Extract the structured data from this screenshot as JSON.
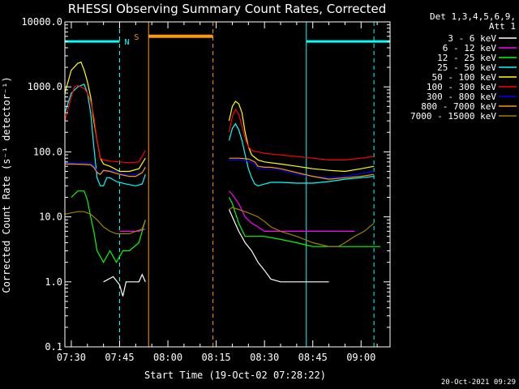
{
  "chart_data": {
    "type": "line",
    "title": "RHESSI Observing Summary Count Rates, Corrected",
    "xlabel": "Start Time (19-Oct-02 07:28:22)",
    "ylabel": "Corrected Count Rate (s⁻¹ detector⁻¹)",
    "y_scale": "log",
    "ylim": [
      0.1,
      10000
    ],
    "xlim_minutes": [
      -2,
      99
    ],
    "x_tick_labels": [
      "07:30",
      "07:45",
      "08:00",
      "08:15",
      "08:30",
      "08:45",
      "09:00"
    ],
    "x_tick_values": [
      0,
      15,
      30,
      45,
      60,
      75,
      90
    ],
    "y_tick_labels": [
      "0.1",
      "1.0",
      "10.0",
      "100.0",
      "1000.0",
      "10000.0"
    ],
    "y_tick_values": [
      0.1,
      1,
      10,
      100,
      1000,
      10000
    ],
    "legend_header": [
      "Det 1,3,4,5,6,9,",
      "Att 1"
    ],
    "legend_placement": "right",
    "footer_date": "20-Oct-2021 09:29",
    "markers": [
      {
        "label": "N",
        "color": "#00ffff"
      },
      {
        "label": "S",
        "color": "#ff9900"
      }
    ],
    "intervals": [
      {
        "name": "night",
        "color": "#00ffff",
        "level": 5000,
        "segments": [
          [
            -2,
            15
          ],
          [
            73,
            99
          ]
        ],
        "vlines_solid": [
          -2,
          73
        ],
        "vlines_dashed": [
          15,
          94
        ]
      },
      {
        "name": "saa",
        "color": "#ff9900",
        "level": 6000,
        "segments": [
          [
            24,
            44
          ]
        ],
        "vlines_solid": [
          24
        ],
        "vlines_dashed": [
          44
        ]
      }
    ],
    "series": [
      {
        "name": "3 - 6 keV",
        "color": "#ffffff",
        "segments": [
          [
            [
              10,
              1
            ],
            [
              13,
              1.2
            ],
            [
              15,
              0.9
            ],
            [
              16,
              0.6
            ],
            [
              17,
              1
            ],
            [
              19,
              1
            ],
            [
              21,
              1
            ],
            [
              22,
              1.3
            ],
            [
              23,
              1
            ]
          ],
          [
            [
              49,
              13
            ],
            [
              50,
              10
            ],
            [
              52,
              6
            ],
            [
              54,
              4
            ],
            [
              56,
              3
            ],
            [
              58,
              2
            ],
            [
              60,
              1.5
            ],
            [
              62,
              1.1
            ],
            [
              65,
              1
            ],
            [
              70,
              1
            ],
            [
              75,
              1
            ],
            [
              80,
              1
            ]
          ]
        ]
      },
      {
        "name": "6 - 12 keV",
        "color": "#ff00ff",
        "segments": [
          [
            [
              15,
              6
            ],
            [
              17,
              6
            ],
            [
              19,
              6
            ],
            [
              21,
              6
            ],
            [
              23,
              6.5
            ]
          ],
          [
            [
              49,
              25
            ],
            [
              50,
              22
            ],
            [
              52,
              16
            ],
            [
              54,
              10
            ],
            [
              56,
              8
            ],
            [
              58,
              7
            ],
            [
              60,
              6
            ],
            [
              62,
              6
            ],
            [
              65,
              6
            ],
            [
              70,
              6
            ],
            [
              75,
              6
            ],
            [
              80,
              6
            ],
            [
              85,
              6
            ],
            [
              88,
              6
            ]
          ]
        ]
      },
      {
        "name": "12 - 25 keV",
        "color": "#00ff00",
        "segments": [
          [
            [
              0,
              20
            ],
            [
              2,
              25
            ],
            [
              4,
              25
            ],
            [
              5,
              18
            ],
            [
              6,
              10
            ],
            [
              7,
              6
            ],
            [
              8,
              3
            ],
            [
              10,
              2
            ],
            [
              12,
              3
            ],
            [
              14,
              2
            ],
            [
              16,
              3
            ],
            [
              18,
              3
            ],
            [
              21,
              4
            ],
            [
              23,
              9
            ]
          ],
          [
            [
              49,
              20
            ],
            [
              50,
              16
            ],
            [
              52,
              8
            ],
            [
              54,
              5
            ],
            [
              56,
              5
            ],
            [
              58,
              5
            ],
            [
              60,
              5
            ],
            [
              65,
              4.5
            ],
            [
              70,
              4
            ],
            [
              75,
              3.5
            ],
            [
              80,
              3.5
            ],
            [
              85,
              3.5
            ],
            [
              88,
              3.5
            ],
            [
              93,
              3.5
            ],
            [
              96,
              3.5
            ]
          ]
        ]
      },
      {
        "name": "25 - 50 keV",
        "color": "#00ffff",
        "segments": [
          [
            [
              -2,
              400
            ],
            [
              0,
              800
            ],
            [
              2,
              1000
            ],
            [
              4,
              1100
            ],
            [
              5,
              800
            ],
            [
              6,
              400
            ],
            [
              7,
              120
            ],
            [
              8,
              40
            ],
            [
              9,
              30
            ],
            [
              10,
              30
            ],
            [
              11,
              40
            ],
            [
              12,
              40
            ],
            [
              14,
              35
            ],
            [
              17,
              32
            ],
            [
              20,
              30
            ],
            [
              22,
              32
            ],
            [
              23,
              45
            ]
          ],
          [
            [
              49,
              150
            ],
            [
              50,
              230
            ],
            [
              51,
              270
            ],
            [
              52,
              220
            ],
            [
              53,
              150
            ],
            [
              54,
              90
            ],
            [
              55,
              55
            ],
            [
              56,
              40
            ],
            [
              57,
              32
            ],
            [
              58,
              30
            ],
            [
              60,
              32
            ],
            [
              62,
              34
            ],
            [
              65,
              34
            ],
            [
              70,
              33
            ],
            [
              75,
              33
            ],
            [
              80,
              35
            ],
            [
              85,
              38
            ],
            [
              90,
              40
            ],
            [
              94,
              42
            ]
          ]
        ]
      },
      {
        "name": "50 - 100 keV",
        "color": "#ffff00",
        "segments": [
          [
            [
              -2,
              800
            ],
            [
              0,
              1800
            ],
            [
              2,
              2300
            ],
            [
              3,
              2400
            ],
            [
              4,
              1800
            ],
            [
              5,
              1200
            ],
            [
              6,
              700
            ],
            [
              7,
              300
            ],
            [
              8,
              150
            ],
            [
              9,
              80
            ],
            [
              10,
              65
            ],
            [
              12,
              60
            ],
            [
              15,
              50
            ],
            [
              18,
              50
            ],
            [
              21,
              55
            ],
            [
              23,
              80
            ]
          ],
          [
            [
              49,
              300
            ],
            [
              50,
              500
            ],
            [
              51,
              600
            ],
            [
              52,
              550
            ],
            [
              53,
              400
            ],
            [
              54,
              200
            ],
            [
              55,
              120
            ],
            [
              56,
              90
            ],
            [
              58,
              75
            ],
            [
              60,
              70
            ],
            [
              65,
              65
            ],
            [
              70,
              60
            ],
            [
              75,
              55
            ],
            [
              80,
              52
            ],
            [
              85,
              50
            ],
            [
              90,
              55
            ],
            [
              94,
              60
            ]
          ]
        ]
      },
      {
        "name": "100 - 300 keV",
        "color": "#ff0000",
        "segments": [
          [
            [
              -2,
              300
            ],
            [
              0,
              700
            ],
            [
              1,
              1000
            ],
            [
              2,
              1050
            ],
            [
              4,
              950
            ],
            [
              5,
              800
            ],
            [
              6,
              600
            ],
            [
              7,
              350
            ],
            [
              8,
              150
            ],
            [
              9,
              80
            ],
            [
              10,
              75
            ],
            [
              12,
              72
            ],
            [
              15,
              70
            ],
            [
              18,
              68
            ],
            [
              21,
              70
            ],
            [
              23,
              105
            ]
          ],
          [
            [
              49,
              200
            ],
            [
              50,
              350
            ],
            [
              51,
              450
            ],
            [
              52,
              380
            ],
            [
              53,
              250
            ],
            [
              54,
              160
            ],
            [
              55,
              120
            ],
            [
              56,
              105
            ],
            [
              58,
              100
            ],
            [
              60,
              95
            ],
            [
              65,
              90
            ],
            [
              70,
              85
            ],
            [
              75,
              80
            ],
            [
              80,
              75
            ],
            [
              85,
              75
            ],
            [
              90,
              80
            ],
            [
              94,
              85
            ]
          ]
        ]
      },
      {
        "name": "300 - 800 keV",
        "color": "#0000ff",
        "segments": [
          [
            [
              -2,
              68
            ],
            [
              0,
              68
            ],
            [
              4,
              67
            ],
            [
              6,
              66
            ],
            [
              7,
              62
            ],
            [
              8,
              50
            ],
            [
              9,
              45
            ],
            [
              10,
              50
            ],
            [
              12,
              52
            ],
            [
              14,
              50
            ],
            [
              16,
              45
            ],
            [
              18,
              45
            ],
            [
              20,
              45
            ],
            [
              22,
              48
            ],
            [
              23,
              60
            ]
          ],
          [
            [
              49,
              75
            ],
            [
              52,
              75
            ],
            [
              55,
              72
            ],
            [
              57,
              65
            ],
            [
              58,
              55
            ],
            [
              60,
              55
            ],
            [
              62,
              55
            ],
            [
              65,
              52
            ],
            [
              70,
              45
            ],
            [
              75,
              42
            ],
            [
              80,
              40
            ],
            [
              85,
              42
            ],
            [
              90,
              46
            ],
            [
              94,
              50
            ]
          ]
        ]
      },
      {
        "name": "800 - 7000 keV",
        "color": "#ff9900",
        "segments": [
          [
            [
              -2,
              65
            ],
            [
              0,
              65
            ],
            [
              4,
              64
            ],
            [
              6,
              63
            ],
            [
              7,
              58
            ],
            [
              8,
              48
            ],
            [
              9,
              45
            ],
            [
              10,
              52
            ],
            [
              12,
              50
            ],
            [
              15,
              45
            ],
            [
              18,
              42
            ],
            [
              20,
              42
            ],
            [
              22,
              48
            ],
            [
              23,
              58
            ]
          ],
          [
            [
              49,
              80
            ],
            [
              52,
              80
            ],
            [
              55,
              78
            ],
            [
              57,
              70
            ],
            [
              58,
              60
            ],
            [
              60,
              58
            ],
            [
              62,
              58
            ],
            [
              65,
              55
            ],
            [
              70,
              48
            ],
            [
              75,
              42
            ],
            [
              80,
              38
            ],
            [
              85,
              40
            ],
            [
              90,
              42
            ],
            [
              94,
              45
            ]
          ]
        ]
      },
      {
        "name": "7000 - 15000 keV",
        "color": "#a08000",
        "segments": [
          [
            [
              -2,
              11
            ],
            [
              0,
              11.5
            ],
            [
              2,
              12
            ],
            [
              4,
              12
            ],
            [
              6,
              11
            ],
            [
              8,
              9
            ],
            [
              10,
              7
            ],
            [
              12,
              6
            ],
            [
              14,
              5.5
            ],
            [
              16,
              5.5
            ],
            [
              18,
              5.5
            ],
            [
              20,
              6
            ],
            [
              22,
              6.5
            ],
            [
              23,
              9
            ]
          ],
          [
            [
              49,
              13
            ],
            [
              50,
              14
            ],
            [
              52,
              13
            ],
            [
              54,
              12
            ],
            [
              56,
              11
            ],
            [
              58,
              10
            ],
            [
              60,
              8.5
            ],
            [
              62,
              7
            ],
            [
              65,
              6
            ],
            [
              70,
              5
            ],
            [
              75,
              4
            ],
            [
              80,
              3.5
            ],
            [
              83,
              3.5
            ],
            [
              85,
              4
            ],
            [
              88,
              5
            ],
            [
              91,
              6
            ],
            [
              94,
              8
            ]
          ]
        ]
      }
    ]
  }
}
